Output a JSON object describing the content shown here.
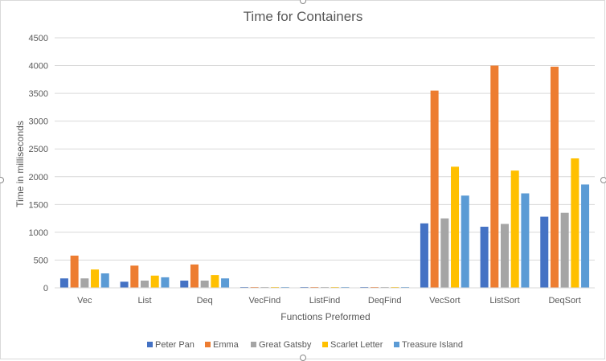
{
  "chart_data": {
    "type": "bar",
    "title": "Time for Containers",
    "xlabel": "Functions Preformed",
    "ylabel": "Time in milliseconds",
    "ylim": [
      0,
      4500
    ],
    "yticks": [
      0,
      500,
      1000,
      1500,
      2000,
      2500,
      3000,
      3500,
      4000,
      4500
    ],
    "grid": true,
    "legend_position": "bottom",
    "categories": [
      "Vec",
      "List",
      "Deq",
      "VecFind",
      "ListFind",
      "DeqFind",
      "VecSort",
      "ListSort",
      "DeqSort"
    ],
    "series": [
      {
        "name": "Peter Pan",
        "color": "#4472C4",
        "values": [
          170,
          110,
          130,
          8,
          8,
          8,
          1160,
          1100,
          1280
        ]
      },
      {
        "name": "Emma",
        "color": "#ED7D31",
        "values": [
          580,
          400,
          420,
          10,
          10,
          10,
          3550,
          4000,
          3980
        ]
      },
      {
        "name": "Great Gatsby",
        "color": "#A5A5A5",
        "values": [
          170,
          130,
          130,
          8,
          8,
          8,
          1250,
          1150,
          1350
        ]
      },
      {
        "name": "Scarlet Letter",
        "color": "#FFC000",
        "values": [
          330,
          220,
          230,
          8,
          8,
          8,
          2180,
          2110,
          2330
        ]
      },
      {
        "name": "Treasure Island",
        "color": "#5B9BD5",
        "values": [
          260,
          190,
          170,
          8,
          8,
          8,
          1660,
          1700,
          1860
        ]
      }
    ]
  }
}
